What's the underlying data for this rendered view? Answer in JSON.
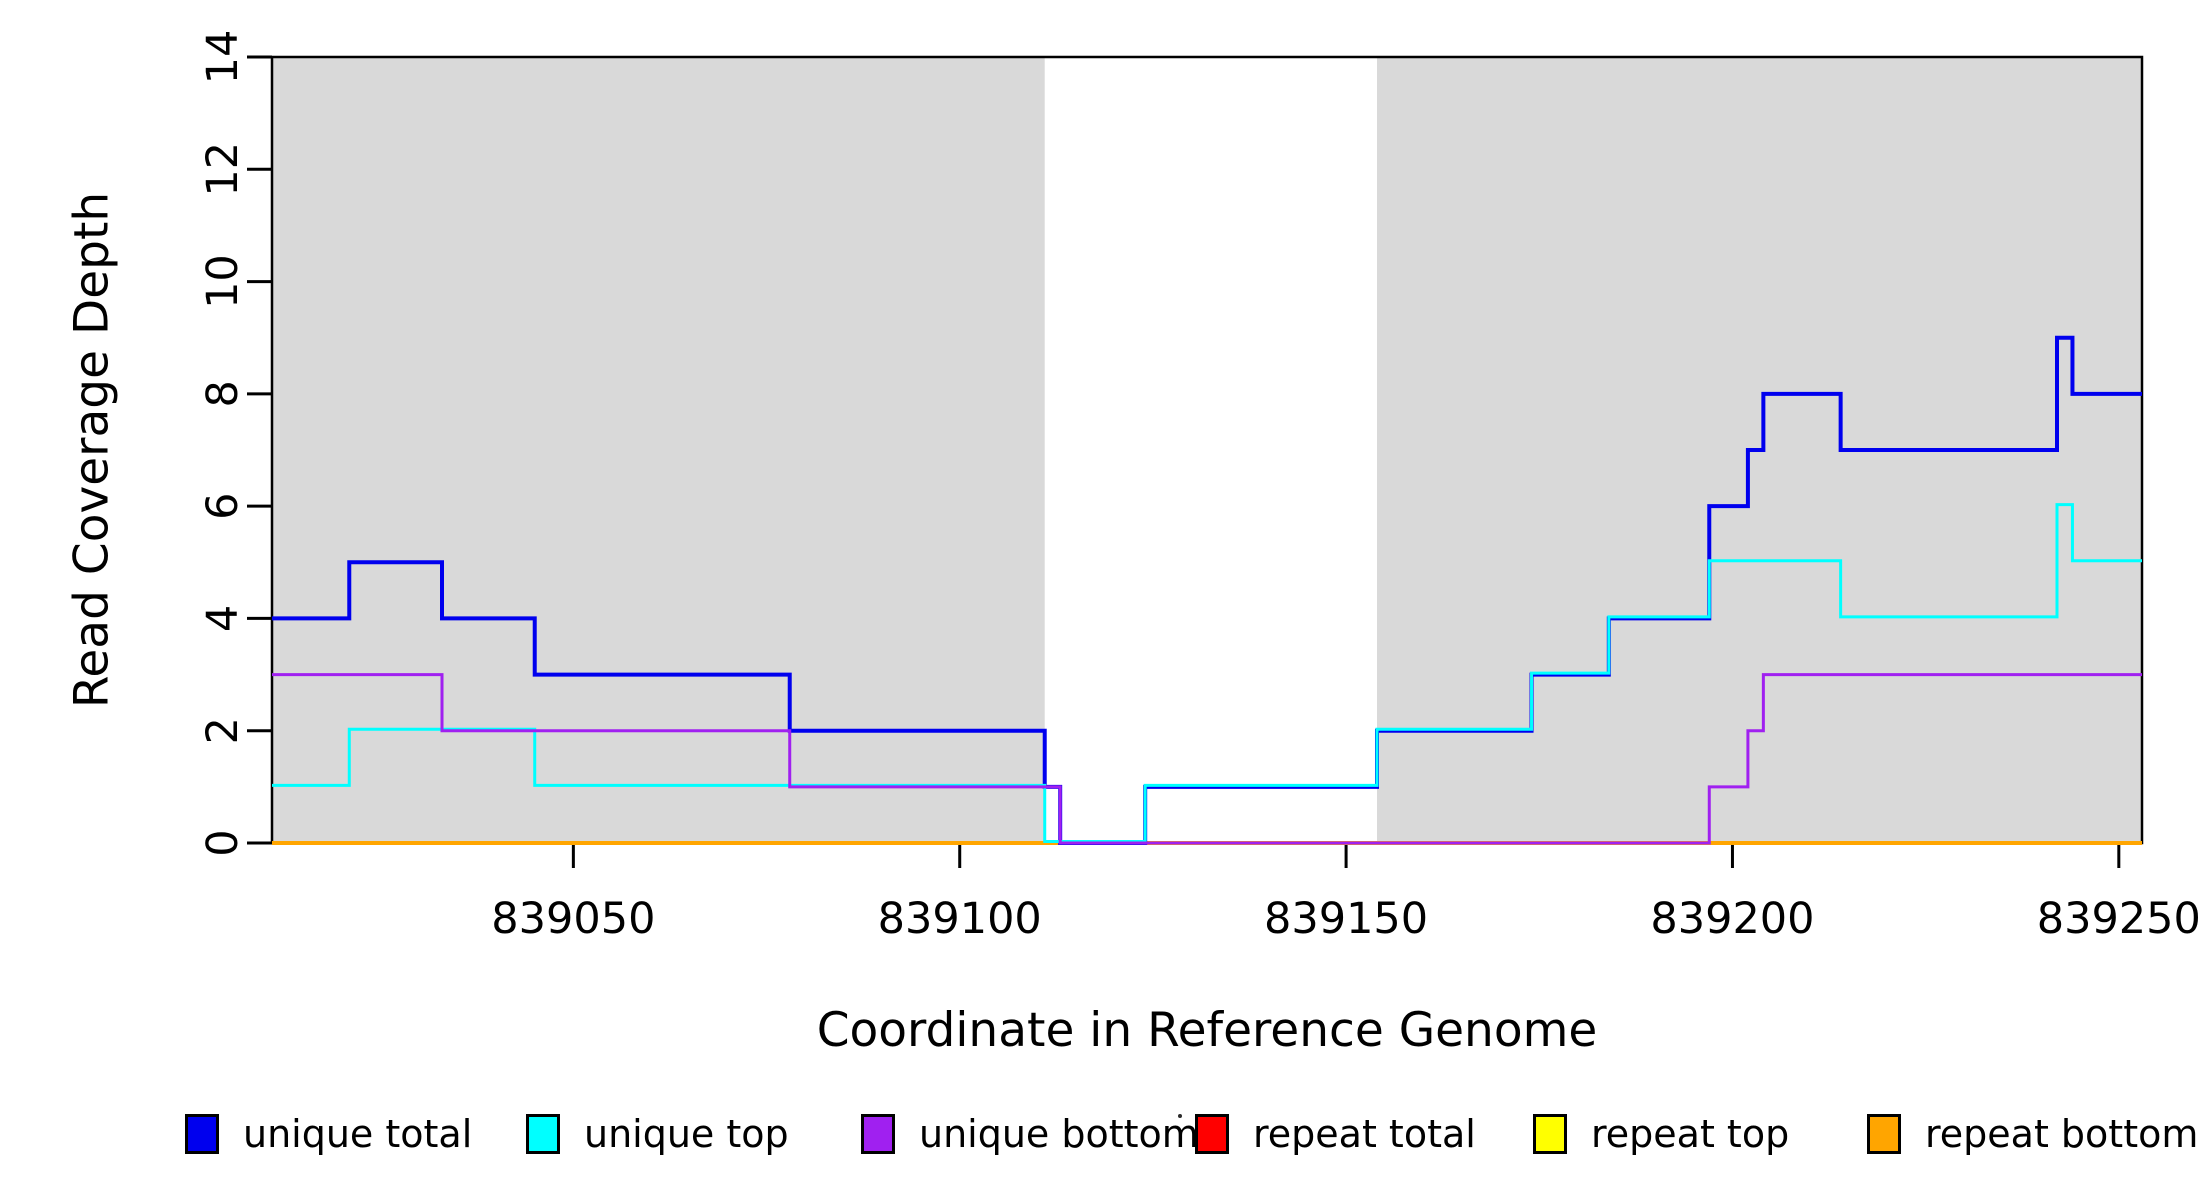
{
  "figure": {
    "background": "#FFFFFF"
  },
  "chart_data": {
    "type": "line",
    "subtype": "step",
    "title": "",
    "xlabel": "Coordinate in Reference Genome",
    "ylabel": "Read Coverage Depth",
    "xlim": [
      839011,
      839253
    ],
    "ylim": [
      0,
      14
    ],
    "grid": "off",
    "legend_position": "bottom",
    "x_ticks": {
      "values": [
        839050,
        839100,
        839150,
        839200,
        839250
      ],
      "labels": [
        "839050",
        "839100",
        "839150",
        "839200",
        "839250"
      ]
    },
    "y_ticks": {
      "values": [
        0,
        2,
        4,
        6,
        8,
        10,
        12,
        14
      ],
      "labels": [
        "0",
        "2",
        "4",
        "6",
        "8",
        "10",
        "12",
        "14"
      ]
    },
    "shaded_regions": {
      "color": "#D9D9D9",
      "ranges": [
        [
          839011,
          839111
        ],
        [
          839154,
          839253
        ]
      ]
    },
    "x_end": 839253,
    "series": [
      {
        "name": "unique total",
        "color": "#0000EE",
        "steps": [
          [
            839011,
            4
          ],
          [
            839021,
            5
          ],
          [
            839033,
            4
          ],
          [
            839045,
            3
          ],
          [
            839078,
            2
          ],
          [
            839111,
            1
          ],
          [
            839113,
            0
          ],
          [
            839124,
            1
          ],
          [
            839154,
            2
          ],
          [
            839174,
            3
          ],
          [
            839184,
            4
          ],
          [
            839197,
            6
          ],
          [
            839202,
            7
          ],
          [
            839204,
            8
          ],
          [
            839214,
            7
          ],
          [
            839242,
            9
          ],
          [
            839244,
            8
          ]
        ]
      },
      {
        "name": "unique top",
        "color": "#00FFFF",
        "steps": [
          [
            839011,
            1
          ],
          [
            839021,
            2
          ],
          [
            839045,
            1
          ],
          [
            839111,
            0
          ],
          [
            839124,
            1
          ],
          [
            839154,
            2
          ],
          [
            839174,
            3
          ],
          [
            839184,
            4
          ],
          [
            839197,
            5
          ],
          [
            839214,
            4
          ],
          [
            839242,
            6
          ],
          [
            839244,
            5
          ]
        ]
      },
      {
        "name": "unique bottom",
        "color": "#A020F0",
        "steps": [
          [
            839011,
            3
          ],
          [
            839033,
            2
          ],
          [
            839078,
            1
          ],
          [
            839113,
            0
          ],
          [
            839197,
            1
          ],
          [
            839202,
            2
          ],
          [
            839204,
            3
          ]
        ]
      },
      {
        "name": "repeat total",
        "color": "#FF0000",
        "steps": [
          [
            839011,
            0
          ]
        ]
      },
      {
        "name": "repeat top",
        "color": "#FFFF00",
        "steps": [
          [
            839011,
            0
          ]
        ]
      },
      {
        "name": "repeat bottom",
        "color": "#FFA500",
        "steps": [
          [
            839011,
            0
          ]
        ]
      }
    ]
  }
}
